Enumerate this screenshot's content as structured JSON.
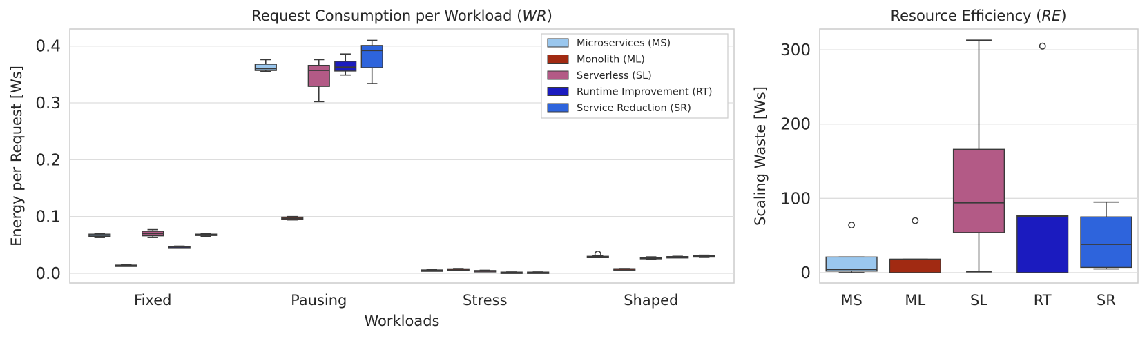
{
  "chart_data": [
    {
      "type": "box",
      "title": "Request Consumption per Workload (WR)",
      "title_main": "Request Consumption per Workload (",
      "title_italic": "WR",
      "title_end": ")",
      "xlabel": "Workloads",
      "ylabel": "Energy per Request [Ws]",
      "ylim": [
        -0.017,
        0.43
      ],
      "yticks": [
        0.0,
        0.1,
        0.2,
        0.3,
        0.4
      ],
      "ytick_labels": [
        "0.0",
        "0.1",
        "0.2",
        "0.3",
        "0.4"
      ],
      "grid": true,
      "legend_position": "top-right",
      "categories": [
        "Fixed",
        "Pausing",
        "Stress",
        "Shaped"
      ],
      "series": [
        {
          "name": "Microservices (MS)",
          "color": "#9ac7ee",
          "boxes": [
            {
              "min": 0.063,
              "q1": 0.065,
              "median": 0.067,
              "q3": 0.069,
              "max": 0.07,
              "outliers": []
            },
            {
              "min": 0.355,
              "q1": 0.357,
              "median": 0.36,
              "q3": 0.368,
              "max": 0.376,
              "outliers": []
            },
            {
              "min": 0.0045,
              "q1": 0.005,
              "median": 0.0055,
              "q3": 0.006,
              "max": 0.0065,
              "outliers": []
            },
            {
              "min": 0.028,
              "q1": 0.029,
              "median": 0.029,
              "q3": 0.03,
              "max": 0.031,
              "outliers": [
                0.034
              ]
            }
          ]
        },
        {
          "name": "Monolith (ML)",
          "color": "#a12a12",
          "boxes": [
            {
              "min": 0.0135,
              "q1": 0.014,
              "median": 0.014,
              "q3": 0.0145,
              "max": 0.015,
              "outliers": []
            },
            {
              "min": 0.094,
              "q1": 0.095,
              "median": 0.097,
              "q3": 0.099,
              "max": 0.1,
              "outliers": []
            },
            {
              "min": 0.0065,
              "q1": 0.007,
              "median": 0.0075,
              "q3": 0.008,
              "max": 0.0085,
              "outliers": []
            },
            {
              "min": 0.0075,
              "q1": 0.0078,
              "median": 0.008,
              "q3": 0.0082,
              "max": 0.0085,
              "outliers": []
            }
          ]
        },
        {
          "name": "Serverless (SL)",
          "color": "#b35a86",
          "boxes": [
            {
              "min": 0.063,
              "q1": 0.066,
              "median": 0.07,
              "q3": 0.074,
              "max": 0.077,
              "outliers": []
            },
            {
              "min": 0.302,
              "q1": 0.329,
              "median": 0.357,
              "q3": 0.366,
              "max": 0.376,
              "outliers": []
            },
            {
              "min": 0.0035,
              "q1": 0.004,
              "median": 0.0045,
              "q3": 0.005,
              "max": 0.0055,
              "outliers": []
            },
            {
              "min": 0.025,
              "q1": 0.026,
              "median": 0.027,
              "q3": 0.028,
              "max": 0.029,
              "outliers": []
            }
          ]
        },
        {
          "name": "Runtime Improvement (RT)",
          "color": "#1b1bbf",
          "boxes": [
            {
              "min": 0.046,
              "q1": 0.0465,
              "median": 0.047,
              "q3": 0.0475,
              "max": 0.048,
              "outliers": []
            },
            {
              "min": 0.349,
              "q1": 0.356,
              "median": 0.363,
              "q3": 0.373,
              "max": 0.386,
              "outliers": []
            },
            {
              "min": 0.0015,
              "q1": 0.0018,
              "median": 0.002,
              "q3": 0.0022,
              "max": 0.0025,
              "outliers": []
            },
            {
              "min": 0.028,
              "q1": 0.0285,
              "median": 0.029,
              "q3": 0.0295,
              "max": 0.03,
              "outliers": []
            }
          ]
        },
        {
          "name": "Service Reduction (SR)",
          "color": "#2e64dc",
          "boxes": [
            {
              "min": 0.065,
              "q1": 0.067,
              "median": 0.068,
              "q3": 0.069,
              "max": 0.07,
              "outliers": []
            },
            {
              "min": 0.334,
              "q1": 0.362,
              "median": 0.392,
              "q3": 0.401,
              "max": 0.41,
              "outliers": []
            },
            {
              "min": 0.0015,
              "q1": 0.0018,
              "median": 0.002,
              "q3": 0.0022,
              "max": 0.0025,
              "outliers": []
            },
            {
              "min": 0.028,
              "q1": 0.029,
              "median": 0.03,
              "q3": 0.031,
              "max": 0.032,
              "outliers": []
            }
          ]
        }
      ]
    },
    {
      "type": "box",
      "title": "Resource Efficiency (RE)",
      "title_main": "Resource Efficiency (",
      "title_italic": "RE",
      "title_end": ")",
      "xlabel": "",
      "ylabel": "Scaling Waste [Ws]",
      "ylim": [
        -14,
        328
      ],
      "yticks": [
        0,
        100,
        200,
        300
      ],
      "ytick_labels": [
        "0",
        "100",
        "200",
        "300"
      ],
      "grid": true,
      "categories": [
        "MS",
        "ML",
        "SL",
        "RT",
        "SR"
      ],
      "colors": [
        "#9ac7ee",
        "#a12a12",
        "#b35a86",
        "#1b1bbf",
        "#2e64dc"
      ],
      "boxes": [
        {
          "min": 0,
          "q1": 2,
          "median": 4,
          "q3": 21,
          "max": 21,
          "outliers": [
            64
          ]
        },
        {
          "min": 0,
          "q1": 0,
          "median": 18,
          "q3": 18,
          "max": 18,
          "outliers": [
            70
          ]
        },
        {
          "min": 1,
          "q1": 54,
          "median": 94,
          "q3": 166,
          "max": 313,
          "outliers": []
        },
        {
          "min": 0,
          "q1": 0,
          "median": 76,
          "q3": 77,
          "max": 77,
          "outliers": [
            305
          ]
        },
        {
          "min": 5,
          "q1": 7,
          "median": 38,
          "q3": 75,
          "max": 95,
          "outliers": []
        }
      ]
    }
  ]
}
